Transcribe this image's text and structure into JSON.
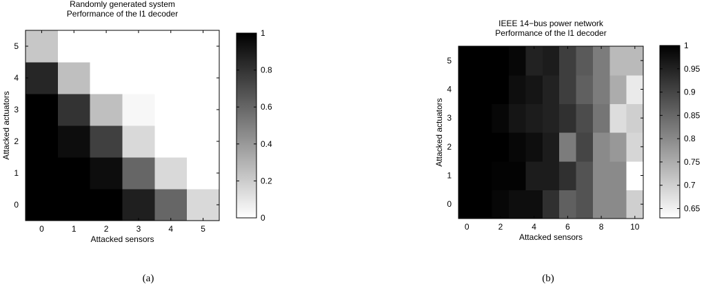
{
  "chart_data": [
    {
      "type": "heatmap",
      "title_lines": [
        "Randomly generated system",
        "Performance of the l1 decoder"
      ],
      "xlabel": "Attacked sensors",
      "ylabel": "Attacked actuators",
      "x": [
        0,
        1,
        2,
        3,
        4,
        5
      ],
      "y": [
        0,
        1,
        2,
        3,
        4,
        5
      ],
      "x_tick_labels": [
        "0",
        "1",
        "2",
        "3",
        "4",
        "5"
      ],
      "y_tick_labels": [
        "0",
        "1",
        "2",
        "3",
        "4",
        "5"
      ],
      "values": [
        [
          1.0,
          1.0,
          1.0,
          0.88,
          0.6,
          0.15
        ],
        [
          1.0,
          1.0,
          0.95,
          0.6,
          0.15,
          0.0
        ],
        [
          1.0,
          0.95,
          0.75,
          0.15,
          0.0,
          0.0
        ],
        [
          1.0,
          0.8,
          0.25,
          0.03,
          0.0,
          0.0
        ],
        [
          0.85,
          0.25,
          0.0,
          0.0,
          0.0,
          0.0
        ],
        [
          0.22,
          0.0,
          0.0,
          0.0,
          0.0,
          0.0
        ]
      ],
      "colorbar": {
        "min": 0,
        "max": 1,
        "ticks": [
          0,
          0.2,
          0.4,
          0.6,
          0.8,
          1
        ],
        "tick_labels": [
          "0",
          "0.2",
          "0.4",
          "0.6",
          "0.8",
          "1"
        ],
        "colormap": "white-to-black"
      },
      "caption": "(a)"
    },
    {
      "type": "heatmap",
      "title_lines": [
        "IEEE 14−bus power network",
        "Performance of the l1 decoder"
      ],
      "xlabel": "Attacked sensors",
      "ylabel": "Attacked actuators",
      "x": [
        0,
        1,
        2,
        3,
        4,
        5,
        6,
        7,
        8,
        9,
        10
      ],
      "y": [
        0,
        1,
        2,
        3,
        4,
        5
      ],
      "x_tick_values": [
        0,
        2,
        4,
        6,
        8,
        10
      ],
      "x_tick_labels": [
        "0",
        "2",
        "4",
        "6",
        "8",
        "10"
      ],
      "y_tick_labels": [
        "0",
        "1",
        "2",
        "3",
        "4",
        "5"
      ],
      "values": [
        [
          1.0,
          1.0,
          0.99,
          0.98,
          0.98,
          0.93,
          0.86,
          0.88,
          0.8,
          0.8,
          0.7
        ],
        [
          1.0,
          1.0,
          0.995,
          0.995,
          0.96,
          0.96,
          0.93,
          0.88,
          0.8,
          0.8,
          0.63
        ],
        [
          1.0,
          1.0,
          1.0,
          0.99,
          0.98,
          0.96,
          0.82,
          0.9,
          0.8,
          0.78,
          0.69
        ],
        [
          1.0,
          1.0,
          0.99,
          0.97,
          0.96,
          0.95,
          0.93,
          0.89,
          0.83,
          0.68,
          0.7
        ],
        [
          1.0,
          1.0,
          1.0,
          0.98,
          0.97,
          0.95,
          0.91,
          0.86,
          0.82,
          0.75,
          0.66
        ],
        [
          1.0,
          1.0,
          1.0,
          0.99,
          0.95,
          0.96,
          0.91,
          0.87,
          0.82,
          0.73,
          0.73
        ]
      ],
      "colorbar": {
        "min": 0.63,
        "max": 1,
        "ticks": [
          0.65,
          0.7,
          0.75,
          0.8,
          0.85,
          0.9,
          0.95,
          1
        ],
        "tick_labels": [
          "0.65",
          "0.7",
          "0.75",
          "0.8",
          "0.85",
          "0.9",
          "0.95",
          "1"
        ],
        "colormap": "white-to-black"
      },
      "caption": "(b)"
    }
  ]
}
